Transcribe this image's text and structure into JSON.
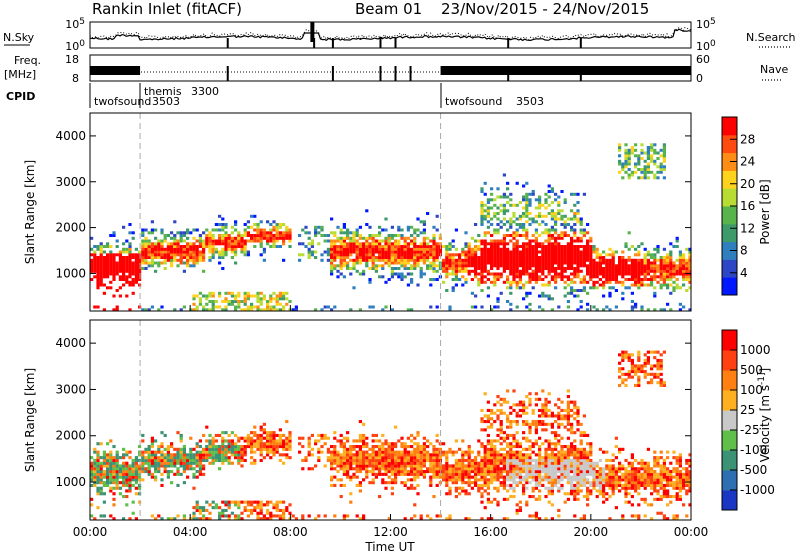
{
  "header": {
    "station": "Rankin Inlet (fitACF)",
    "beam": "Beam 01",
    "dates": "23/Nov/2015 - 24/Nov/2015"
  },
  "noise_panel": {
    "left_label": "N.Sky",
    "right_label": "N.Search",
    "left_ticks": [
      "10^5",
      "10^0"
    ],
    "right_ticks": [
      "10^5",
      "10^0"
    ]
  },
  "freq_panel": {
    "left_label_1": "Freq.",
    "left_label_2": "[MHz]",
    "right_label": "Nave",
    "left_ticks": [
      "18",
      "8"
    ],
    "right_ticks": [
      "60",
      "0"
    ]
  },
  "cpid_panel": {
    "label": "CPID",
    "segments": [
      {
        "name": "twofsound",
        "id": "3503",
        "start_hour": 0
      },
      {
        "name": "themis",
        "id": "3300",
        "start_hour": 2
      },
      {
        "name": "twofsound",
        "id": "3503",
        "start_hour": 14
      }
    ]
  },
  "chart_data": [
    {
      "type": "heatmap",
      "title": "Power",
      "ylabel": "Slant Range [km]",
      "xlabel": "Time UT",
      "x_ticks": [
        "00:00",
        "04:00",
        "08:00",
        "12:00",
        "16:00",
        "20:00",
        "00:00"
      ],
      "x_range_hours": [
        0,
        24
      ],
      "ylim": [
        180,
        4500
      ],
      "y_ticks": [
        1000,
        2000,
        3000,
        4000
      ],
      "colorbar": {
        "label": "Power [dB]",
        "ticks": [
          "28",
          "24",
          "20",
          "16",
          "12",
          "8",
          "4"
        ],
        "range": [
          0,
          30
        ],
        "colors": [
          "#0018ff",
          "#2c46c6",
          "#2f7fbf",
          "#3d9a6a",
          "#58b34c",
          "#b8dc34",
          "#ffd21e",
          "#ff8c14",
          "#ff4a10",
          "#ff0000"
        ]
      }
    },
    {
      "type": "heatmap",
      "title": "Velocity",
      "ylabel": "Slant Range [km]",
      "xlabel": "Time UT",
      "x_ticks": [
        "00:00",
        "04:00",
        "08:00",
        "12:00",
        "16:00",
        "20:00",
        "00:00"
      ],
      "x_range_hours": [
        0,
        24
      ],
      "ylim": [
        180,
        4500
      ],
      "y_ticks": [
        1000,
        2000,
        3000,
        4000
      ],
      "colorbar": {
        "label": "Velocity [m s^-1]",
        "ticks": [
          "1000",
          "500",
          "100",
          "25",
          "-25",
          "-100",
          "-500",
          "-1000"
        ],
        "colors": [
          "#1a37c4",
          "#2d6fb1",
          "#3c9274",
          "#5fbf48",
          "#c9c9c9",
          "#ffb020",
          "#ff8010",
          "#ff4010",
          "#ff0000"
        ]
      }
    }
  ],
  "time_axis_label": "Time UT"
}
